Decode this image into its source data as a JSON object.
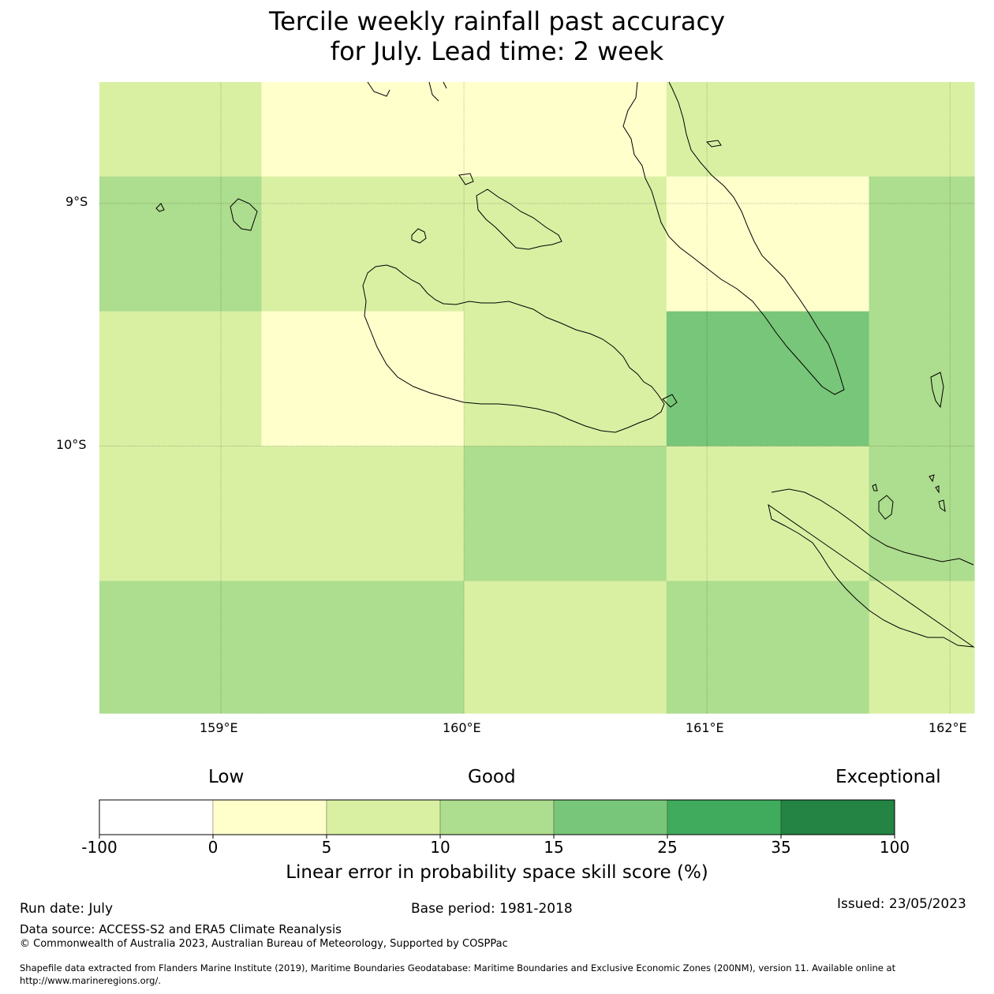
{
  "title_line1": "Tercile weekly rainfall past accuracy",
  "title_line2": "for July. Lead time: 2 week",
  "map": {
    "lon_range": [
      158.5,
      162.1
    ],
    "lat_range": [
      -11.1,
      -8.5
    ],
    "lon_ticks": [
      159,
      160,
      161,
      162
    ],
    "lon_tick_labels": [
      "159°E",
      "160°E",
      "161°E",
      "162°E"
    ],
    "lat_ticks": [
      -9,
      -10
    ],
    "lat_tick_labels": [
      "9°S",
      "10°S"
    ],
    "col_edges_lon": [
      158.5,
      159.1667,
      160.0,
      160.8333,
      161.6667,
      162.1
    ],
    "row_edges_lat": [
      -8.5,
      -8.8889,
      -9.4444,
      -10.0,
      -10.5556,
      -11.1
    ],
    "cells": [
      [
        2,
        1,
        1,
        2,
        2
      ],
      [
        3,
        2,
        2,
        1,
        3
      ],
      [
        2,
        1,
        2,
        4,
        3
      ],
      [
        2,
        2,
        3,
        2,
        3
      ],
      [
        3,
        3,
        2,
        3,
        2
      ]
    ],
    "gridlines": true
  },
  "colorbar": {
    "categories": [
      "Low",
      "Good",
      "Exceptional"
    ],
    "tick_labels": [
      "-100",
      "0",
      "5",
      "10",
      "15",
      "25",
      "35",
      "100"
    ],
    "colors": [
      "#ffffff",
      "#ffffcc",
      "#d9f0a3",
      "#addd8e",
      "#78c679",
      "#41ab5d",
      "#238443"
    ],
    "label": "Linear error in probability space skill score (%)"
  },
  "footer": {
    "run_date": "Run date: July",
    "base_period": "Base period: 1981-2018",
    "issued": "Issued: 23/05/2023",
    "data_source": "Data source: ACCESS-S2 and ERA5 Climate Reanalysis",
    "copyright": "© Commonwealth of Australia 2023, Australian Bureau of Meteorology, Supported by COSPPac",
    "shapefile_line1": "Shapefile data extracted from Flanders Marine Institute (2019), Maritime Boundaries Geodatabase: Maritime Boundaries and Exclusive Economic Zones (200NM), version 11. Available online at",
    "shapefile_line2": "http://www.marineregions.org/."
  }
}
